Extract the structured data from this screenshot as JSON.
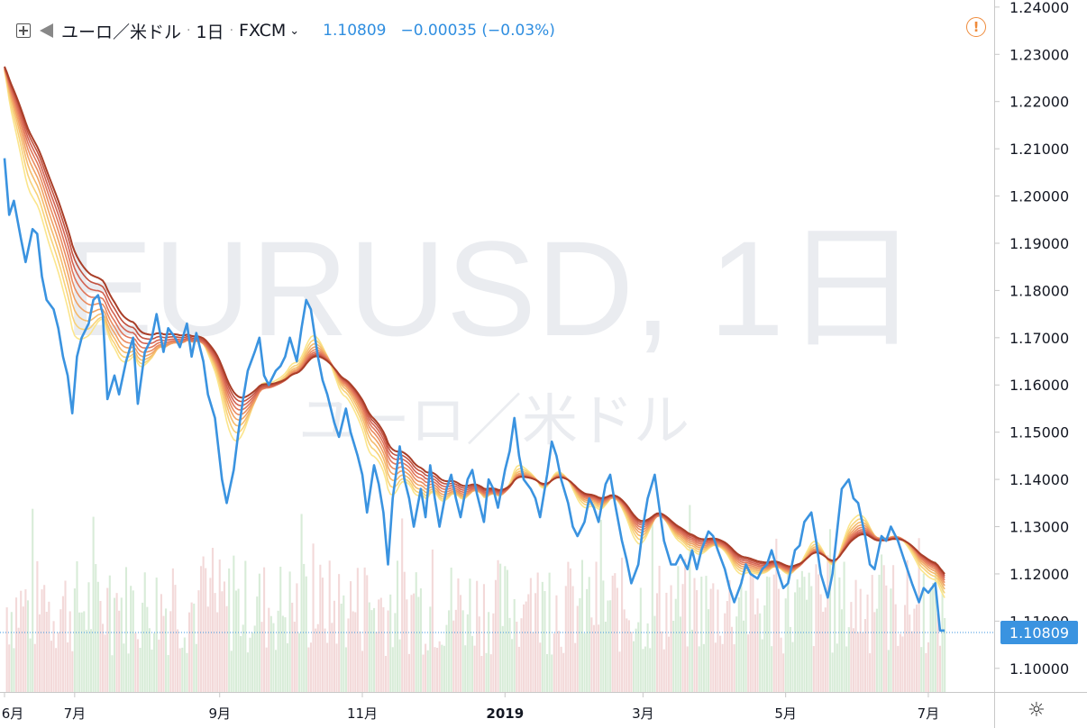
{
  "header": {
    "symbol": "ユーロ／米ドル",
    "interval": "1日",
    "exchange": "FXCM",
    "last": "1.10809",
    "change": "−0.00035 (−0.03%)"
  },
  "watermark": {
    "line1": "EURUSD, 1日",
    "line2": "ユーロ／米ドル"
  },
  "price_tag": "1.10809",
  "colors": {
    "price": "#3a93e0",
    "ribbon": [
      "#fbe58c",
      "#f8d27a",
      "#f5bb6c",
      "#f0a264",
      "#ea8c60",
      "#e0765a",
      "#d36352",
      "#c2513f",
      "#a93e28"
    ],
    "vol_up": "#d8ecd8",
    "vol_down": "#f3d9d9"
  },
  "chart_data": {
    "type": "line",
    "ylim": [
      1.095,
      1.2415
    ],
    "yticks": [
      "1.24000",
      "1.23000",
      "1.22000",
      "1.21000",
      "1.20000",
      "1.19000",
      "1.18000",
      "1.17000",
      "1.16000",
      "1.15000",
      "1.14000",
      "1.13000",
      "1.12000",
      "1.11000",
      "1.10000"
    ],
    "xticks": [
      {
        "label": "6月",
        "day": 0
      },
      {
        "label": "7月",
        "day": 30
      },
      {
        "label": "9月",
        "day": 92
      },
      {
        "label": "11月",
        "day": 153
      },
      {
        "label": "2019",
        "day": 214
      },
      {
        "label": "3月",
        "day": 273
      },
      {
        "label": "5月",
        "day": 334
      },
      {
        "label": "7月",
        "day": 395
      }
    ],
    "xrange": [
      0,
      422
    ],
    "series": [
      {
        "values": [
          [
            0,
            1.208
          ],
          [
            2,
            1.196
          ],
          [
            4,
            1.199
          ],
          [
            7,
            1.191
          ],
          [
            9,
            1.186
          ],
          [
            12,
            1.193
          ],
          [
            14,
            1.192
          ],
          [
            16,
            1.183
          ],
          [
            18,
            1.178
          ],
          [
            21,
            1.176
          ],
          [
            23,
            1.172
          ],
          [
            25,
            1.166
          ],
          [
            27,
            1.162
          ],
          [
            29,
            1.154
          ],
          [
            31,
            1.166
          ],
          [
            33,
            1.17
          ],
          [
            36,
            1.173
          ],
          [
            38,
            1.178
          ],
          [
            40,
            1.179
          ],
          [
            42,
            1.175
          ],
          [
            44,
            1.157
          ],
          [
            47,
            1.162
          ],
          [
            49,
            1.158
          ],
          [
            52,
            1.165
          ],
          [
            55,
            1.17
          ],
          [
            57,
            1.156
          ],
          [
            60,
            1.167
          ],
          [
            63,
            1.17
          ],
          [
            65,
            1.175
          ],
          [
            68,
            1.167
          ],
          [
            70,
            1.172
          ],
          [
            73,
            1.17
          ],
          [
            75,
            1.168
          ],
          [
            78,
            1.173
          ],
          [
            80,
            1.166
          ],
          [
            82,
            1.171
          ],
          [
            85,
            1.165
          ],
          [
            87,
            1.158
          ],
          [
            90,
            1.153
          ],
          [
            93,
            1.14
          ],
          [
            95,
            1.135
          ],
          [
            98,
            1.142
          ],
          [
            100,
            1.15
          ],
          [
            102,
            1.157
          ],
          [
            104,
            1.163
          ],
          [
            107,
            1.167
          ],
          [
            109,
            1.17
          ],
          [
            111,
            1.162
          ],
          [
            113,
            1.16
          ],
          [
            116,
            1.163
          ],
          [
            118,
            1.164
          ],
          [
            120,
            1.166
          ],
          [
            122,
            1.17
          ],
          [
            125,
            1.165
          ],
          [
            127,
            1.172
          ],
          [
            129,
            1.178
          ],
          [
            131,
            1.176
          ],
          [
            134,
            1.166
          ],
          [
            136,
            1.161
          ],
          [
            138,
            1.158
          ],
          [
            141,
            1.152
          ],
          [
            143,
            1.149
          ],
          [
            146,
            1.155
          ],
          [
            148,
            1.15
          ],
          [
            151,
            1.145
          ],
          [
            153,
            1.141
          ],
          [
            155,
            1.133
          ],
          [
            158,
            1.143
          ],
          [
            160,
            1.139
          ],
          [
            162,
            1.133
          ],
          [
            164,
            1.122
          ],
          [
            166,
            1.136
          ],
          [
            169,
            1.147
          ],
          [
            171,
            1.14
          ],
          [
            173,
            1.136
          ],
          [
            175,
            1.13
          ],
          [
            178,
            1.138
          ],
          [
            180,
            1.132
          ],
          [
            182,
            1.143
          ],
          [
            184,
            1.136
          ],
          [
            186,
            1.13
          ],
          [
            189,
            1.138
          ],
          [
            191,
            1.141
          ],
          [
            193,
            1.136
          ],
          [
            195,
            1.132
          ],
          [
            198,
            1.14
          ],
          [
            200,
            1.142
          ],
          [
            202,
            1.137
          ],
          [
            205,
            1.131
          ],
          [
            207,
            1.14
          ],
          [
            209,
            1.138
          ],
          [
            211,
            1.134
          ],
          [
            214,
            1.142
          ],
          [
            216,
            1.146
          ],
          [
            218,
            1.153
          ],
          [
            220,
            1.145
          ],
          [
            222,
            1.14
          ],
          [
            225,
            1.138
          ],
          [
            227,
            1.136
          ],
          [
            229,
            1.132
          ],
          [
            232,
            1.141
          ],
          [
            234,
            1.148
          ],
          [
            236,
            1.145
          ],
          [
            238,
            1.14
          ],
          [
            241,
            1.135
          ],
          [
            243,
            1.13
          ],
          [
            245,
            1.128
          ],
          [
            248,
            1.131
          ],
          [
            250,
            1.136
          ],
          [
            252,
            1.134
          ],
          [
            254,
            1.131
          ],
          [
            257,
            1.139
          ],
          [
            259,
            1.141
          ],
          [
            261,
            1.135
          ],
          [
            264,
            1.127
          ],
          [
            266,
            1.123
          ],
          [
            268,
            1.118
          ],
          [
            271,
            1.122
          ],
          [
            273,
            1.13
          ],
          [
            275,
            1.136
          ],
          [
            278,
            1.141
          ],
          [
            280,
            1.134
          ],
          [
            282,
            1.127
          ],
          [
            285,
            1.122
          ],
          [
            287,
            1.122
          ],
          [
            289,
            1.124
          ],
          [
            292,
            1.121
          ],
          [
            294,
            1.125
          ],
          [
            296,
            1.121
          ],
          [
            298,
            1.125
          ],
          [
            301,
            1.129
          ],
          [
            303,
            1.128
          ],
          [
            305,
            1.125
          ],
          [
            308,
            1.121
          ],
          [
            310,
            1.117
          ],
          [
            312,
            1.114
          ],
          [
            315,
            1.118
          ],
          [
            317,
            1.122
          ],
          [
            319,
            1.12
          ],
          [
            322,
            1.119
          ],
          [
            324,
            1.121
          ],
          [
            326,
            1.122
          ],
          [
            328,
            1.125
          ],
          [
            331,
            1.12
          ],
          [
            333,
            1.117
          ],
          [
            335,
            1.118
          ],
          [
            338,
            1.125
          ],
          [
            340,
            1.126
          ],
          [
            342,
            1.131
          ],
          [
            345,
            1.133
          ],
          [
            347,
            1.127
          ],
          [
            349,
            1.12
          ],
          [
            352,
            1.115
          ],
          [
            354,
            1.12
          ],
          [
            356,
            1.129
          ],
          [
            358,
            1.138
          ],
          [
            361,
            1.14
          ],
          [
            363,
            1.136
          ],
          [
            365,
            1.135
          ],
          [
            368,
            1.128
          ],
          [
            370,
            1.122
          ],
          [
            372,
            1.121
          ],
          [
            375,
            1.128
          ],
          [
            377,
            1.127
          ],
          [
            379,
            1.13
          ],
          [
            382,
            1.127
          ],
          [
            384,
            1.124
          ],
          [
            386,
            1.121
          ],
          [
            388,
            1.118
          ],
          [
            391,
            1.114
          ],
          [
            393,
            1.117
          ],
          [
            395,
            1.116
          ],
          [
            398,
            1.118
          ],
          [
            400,
            1.108
          ],
          [
            402,
            1.108
          ]
        ]
      }
    ],
    "ribbon_periods": [
      10,
      12,
      14,
      16,
      18,
      20,
      22,
      24,
      26
    ]
  }
}
